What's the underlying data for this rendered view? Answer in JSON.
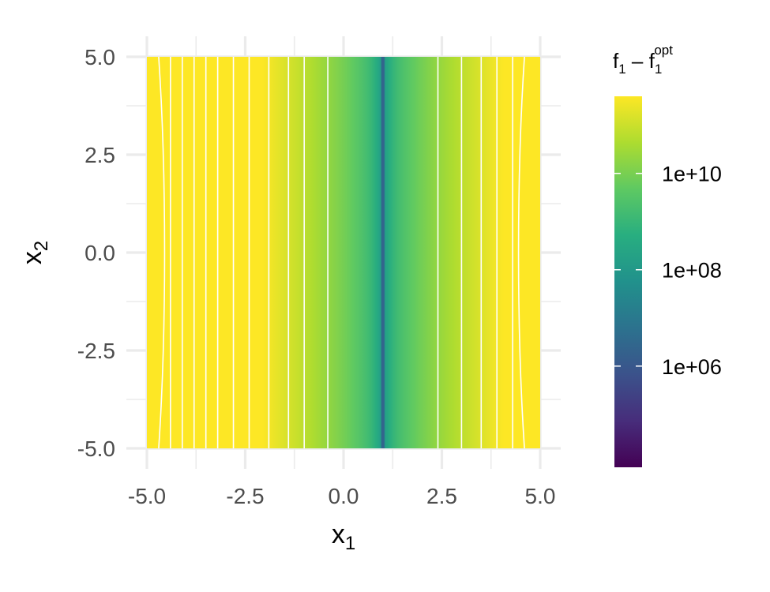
{
  "chart_data": {
    "type": "heatmap",
    "title": "",
    "xlabel": {
      "main": "x",
      "sub": "1"
    },
    "ylabel": {
      "main": "x",
      "sub": "2"
    },
    "xlim": [
      -5,
      5
    ],
    "ylim": [
      -5,
      5
    ],
    "x_ticks": [
      -5.0,
      -2.5,
      0.0,
      2.5,
      5.0
    ],
    "x_tick_labels": [
      "-5.0",
      "-2.5",
      "0.0",
      "2.5",
      "5.0"
    ],
    "y_ticks": [
      5.0,
      2.5,
      0.0,
      -2.5,
      -5.0
    ],
    "y_tick_labels": [
      "5.0",
      "2.5",
      "0.0",
      "-2.5",
      "-5.0"
    ],
    "grid": true,
    "minimum_x1": 1.0,
    "contour_levels_x1": [
      -4.7,
      -4.4,
      -4.1,
      -3.8,
      -3.5,
      -3.2,
      -2.8,
      -2.4,
      -1.9,
      -1.4,
      -1.0,
      -0.4,
      2.4,
      3.0,
      3.5,
      3.9,
      4.3,
      4.6
    ],
    "colorscale": "viridis",
    "color_stops": [
      "#440154",
      "#472d7b",
      "#3b528b",
      "#2c728e",
      "#21918c",
      "#28ae80",
      "#5ec962",
      "#addc30",
      "#fde725"
    ],
    "legend": {
      "title": {
        "main": "f",
        "sub1": "1",
        "minus": " – f",
        "sub2": "1",
        "sup": "opt"
      },
      "scale": "log",
      "ticks": [
        1000000.0,
        100000000.0,
        10000000000.0
      ],
      "tick_labels": [
        "1e+06",
        "1e+08",
        "1e+10"
      ],
      "range_log10": [
        3.9,
        11.6
      ],
      "placement": "right"
    }
  }
}
